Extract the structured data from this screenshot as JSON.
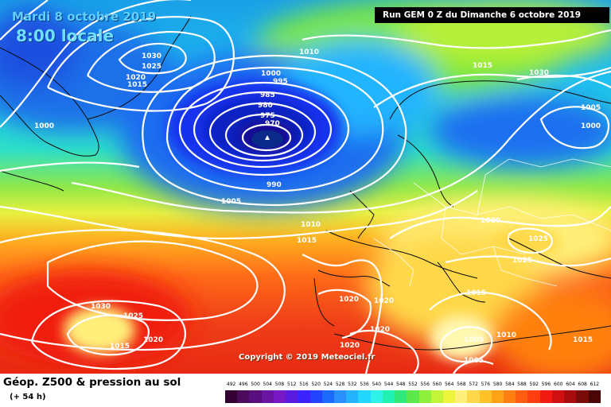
{
  "header": {
    "date": "Mardi 8 octobre 2019",
    "local_time": "8:00 locale",
    "run_info": "Run GEM 0 Z du Dimanche 6 octobre 2019"
  },
  "map": {
    "copyright": "Copyright © 2019 Meteociel.fr",
    "isobar_labels": [
      "1030",
      "1025",
      "1020",
      "1015",
      "1000",
      "1010",
      "1000",
      "995",
      "985",
      "980",
      "975",
      "970",
      "990",
      "1005",
      "1010",
      "1015",
      "1015",
      "1005",
      "1000",
      "1030",
      "1020",
      "1025",
      "1025",
      "1015",
      "1020",
      "1020",
      "1020",
      "1020",
      "1030",
      "1025",
      "1015",
      "1020",
      "1005",
      "1010",
      "1005",
      "1015"
    ],
    "low_marker": "low-pressure-center-icon"
  },
  "footer": {
    "product_title": "Géop. Z500 & pression au sol",
    "lead_time": "(+ 54 h)",
    "scale_values": [
      "492",
      "496",
      "500",
      "504",
      "508",
      "512",
      "516",
      "520",
      "524",
      "528",
      "532",
      "536",
      "540",
      "544",
      "548",
      "552",
      "556",
      "560",
      "564",
      "568",
      "572",
      "576",
      "580",
      "584",
      "588",
      "592",
      "596",
      "600",
      "604",
      "608",
      "612"
    ],
    "scale_colors": [
      "#330033",
      "#4b0a5a",
      "#5a0f7e",
      "#6a14a2",
      "#7818c4",
      "#5a1ae0",
      "#3c22ff",
      "#2244ff",
      "#1a6aff",
      "#2a90ff",
      "#24b4ff",
      "#22d6ff",
      "#2ef2e8",
      "#20f0b0",
      "#30e87a",
      "#5ce84a",
      "#8ff03c",
      "#c2f53a",
      "#ecf53a",
      "#fff07a",
      "#ffd84a",
      "#ffc028",
      "#ffa218",
      "#ff8010",
      "#ff5e10",
      "#ff3e10",
      "#f01a10",
      "#d01010",
      "#a80c0c",
      "#780a0a",
      "#4a0606"
    ]
  }
}
